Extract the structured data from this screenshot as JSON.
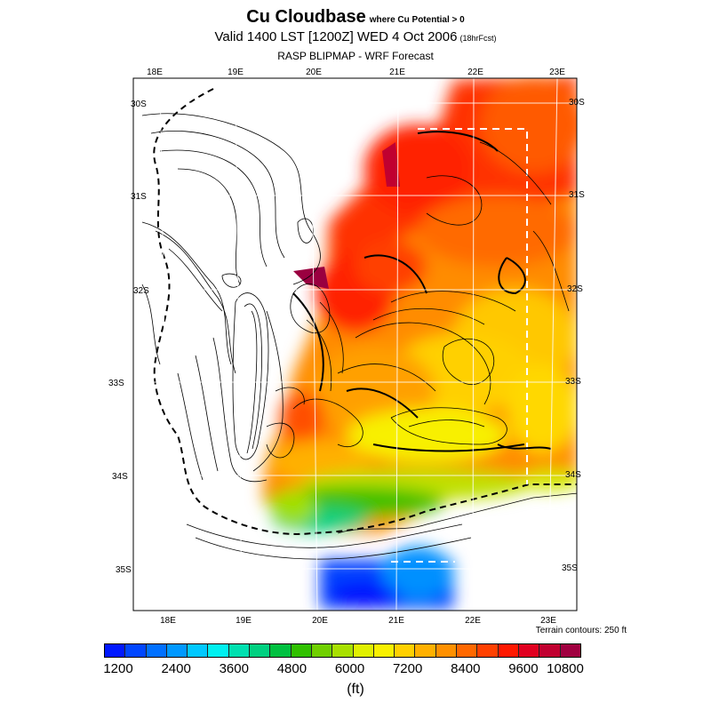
{
  "title": {
    "main": "Cu Cloudbase",
    "qualifier": "where Cu Potential > 0",
    "valid": "Valid 1400 LST [1200Z] WED 4 Oct 2006",
    "fcst": "(18hrFcst)",
    "source": "RASP BLIPMAP - WRF Forecast"
  },
  "map": {
    "lon_labels_top": [
      "18E",
      "19E",
      "20E",
      "21E",
      "22E",
      "23E"
    ],
    "lon_labels_bottom": [
      "18E",
      "19E",
      "20E",
      "21E",
      "22E",
      "23E"
    ],
    "lat_labels_left": [
      "30S",
      "31S",
      "32S",
      "33S",
      "34S",
      "35S"
    ],
    "lat_labels_right": [
      "30S",
      "31S",
      "32S",
      "33S",
      "34S",
      "35S"
    ],
    "terrain_note": "Terrain contours: 250 ft",
    "grid": true
  },
  "colorbar": {
    "colors": [
      "#0018ff",
      "#0046ff",
      "#0070ff",
      "#0098ff",
      "#00c8ff",
      "#00f0f0",
      "#00e0b0",
      "#00d080",
      "#00c040",
      "#30c000",
      "#70d000",
      "#a8e000",
      "#e0f000",
      "#f8f000",
      "#ffd000",
      "#ffb000",
      "#ff9000",
      "#ff6800",
      "#ff4000",
      "#ff1800",
      "#e00020",
      "#c00030",
      "#a00040"
    ],
    "tick_labels": [
      "1200",
      "2400",
      "3600",
      "4800",
      "6000",
      "7200",
      "8400",
      "9600",
      "10800"
    ],
    "units": "(ft)"
  }
}
